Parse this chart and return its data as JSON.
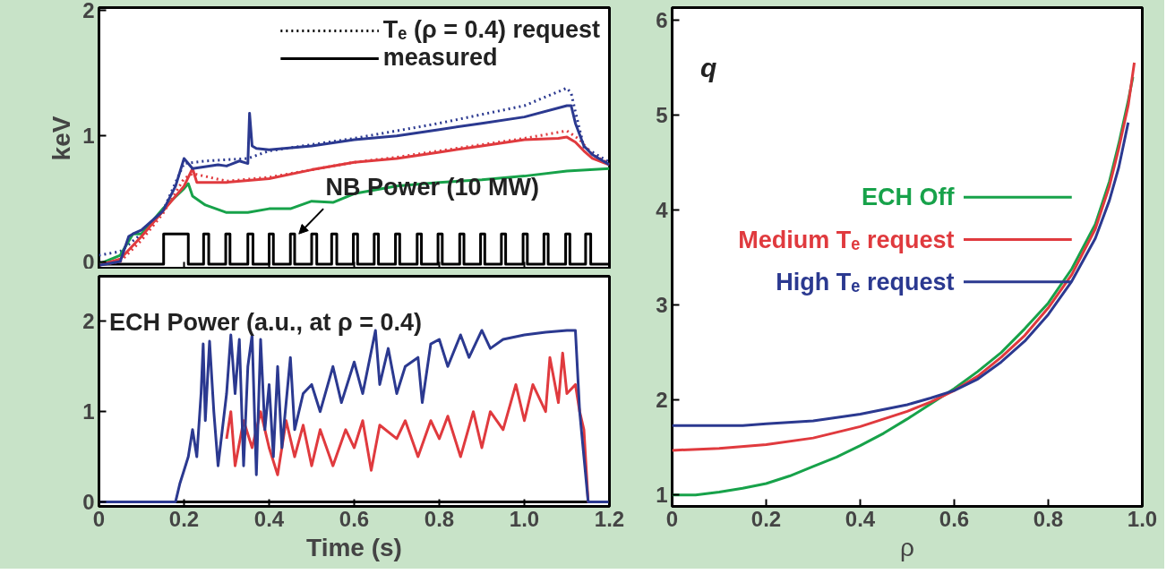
{
  "chart_data": [
    {
      "type": "line",
      "ylabel": "keV",
      "xlim": [
        0,
        1.2
      ],
      "ylim": [
        -0.06,
        2.02
      ],
      "xticks": [
        0,
        0.2,
        0.4,
        0.6,
        0.8,
        1.0,
        1.2
      ],
      "yticks": [
        0,
        1,
        2
      ],
      "tick_labels": "y",
      "legend": "top right",
      "annotations": [
        "Tₑ (ρ = 0.4) request",
        "measured",
        {
          "text": "NB Power (10 MW)",
          "x": 0.47,
          "y": 0.22
        }
      ],
      "series": [
        {
          "color": "#2b3990",
          "line_style": "dotted",
          "x": [
            0,
            0.05,
            0.1,
            0.15,
            0.2,
            0.25,
            0.35,
            0.4,
            0.5,
            0.6,
            0.7,
            0.8,
            0.9,
            1.0,
            1.1,
            1.11,
            1.12,
            1.14,
            1.17,
            1.2
          ],
          "values": [
            0.05,
            0.08,
            0.22,
            0.4,
            0.78,
            0.8,
            0.82,
            0.88,
            0.93,
            0.98,
            1.04,
            1.1,
            1.17,
            1.24,
            1.38,
            1.34,
            1.19,
            0.91,
            0.85,
            0.79
          ]
        },
        {
          "color": "#000000",
          "x": [
            0,
            0.152,
            0.152,
            0.21,
            0.21,
            0.246,
            0.246,
            0.258,
            0.258,
            0.298,
            0.298,
            0.308,
            0.308,
            0.35,
            0.35,
            0.362,
            0.362,
            0.4,
            0.4,
            0.41,
            0.41,
            0.45,
            0.45,
            0.46,
            0.46,
            0.5,
            0.5,
            0.512,
            0.512,
            0.547,
            0.547,
            0.559,
            0.559,
            0.598,
            0.598,
            0.608,
            0.608,
            0.647,
            0.647,
            0.657,
            0.657,
            0.697,
            0.697,
            0.707,
            0.707,
            0.748,
            0.748,
            0.758,
            0.758,
            0.797,
            0.797,
            0.807,
            0.807,
            0.848,
            0.848,
            0.858,
            0.858,
            0.897,
            0.897,
            0.907,
            0.907,
            0.946,
            0.946,
            0.956,
            0.956,
            0.997,
            0.997,
            1.007,
            1.007,
            1.046,
            1.046,
            1.056,
            1.056,
            1.097,
            1.097,
            1.107,
            1.107,
            1.144,
            1.144,
            1.156,
            1.156,
            1.2
          ],
          "values": [
            -0.02,
            -0.02,
            0.22,
            0.22,
            -0.02,
            -0.02,
            0.22,
            0.22,
            -0.02,
            -0.02,
            0.22,
            0.22,
            -0.02,
            -0.02,
            0.22,
            0.22,
            -0.02,
            -0.02,
            0.22,
            0.22,
            -0.02,
            -0.02,
            0.22,
            0.22,
            -0.02,
            -0.02,
            0.22,
            0.22,
            -0.02,
            -0.02,
            0.22,
            0.22,
            -0.02,
            -0.02,
            0.22,
            0.22,
            -0.02,
            -0.02,
            0.22,
            0.22,
            -0.02,
            -0.02,
            0.22,
            0.22,
            -0.02,
            -0.02,
            0.22,
            0.22,
            -0.02,
            -0.02,
            0.22,
            0.22,
            -0.02,
            -0.02,
            0.22,
            0.22,
            -0.02,
            -0.02,
            0.22,
            0.22,
            -0.02,
            -0.02,
            0.22,
            0.22,
            -0.02,
            -0.02,
            0.22,
            0.22,
            -0.02,
            -0.02,
            0.22,
            0.22,
            -0.02,
            -0.02,
            0.22,
            0.22,
            -0.02,
            -0.02,
            0.22,
            0.22,
            -0.02,
            -0.02
          ]
        },
        {
          "color": "#17a24a",
          "line_style": "solid",
          "x": [
            0,
            0.05,
            0.08,
            0.1,
            0.15,
            0.2,
            0.21,
            0.22,
            0.25,
            0.3,
            0.35,
            0.4,
            0.45,
            0.5,
            0.55,
            0.6,
            0.7,
            0.8,
            0.9,
            1.0,
            1.1,
            1.2
          ],
          "values": [
            -0.02,
            0.05,
            0.22,
            0.22,
            0.42,
            0.58,
            0.62,
            0.52,
            0.45,
            0.39,
            0.39,
            0.42,
            0.42,
            0.48,
            0.47,
            0.54,
            0.6,
            0.63,
            0.65,
            0.68,
            0.72,
            0.74
          ]
        },
        {
          "color": "#e03a3e",
          "line_style": "dotted",
          "x": [
            0,
            0.05,
            0.1,
            0.15,
            0.2,
            0.22,
            0.3,
            0.4,
            0.5,
            0.6,
            0.7,
            0.8,
            0.9,
            1.0,
            1.1,
            1.13,
            1.16,
            1.2
          ],
          "values": [
            -0.03,
            0.0,
            0.17,
            0.38,
            0.66,
            0.7,
            0.64,
            0.67,
            0.73,
            0.79,
            0.83,
            0.88,
            0.93,
            0.98,
            1.04,
            0.97,
            0.85,
            0.78
          ]
        },
        {
          "color": "#e03a3e",
          "line_style": "solid",
          "x": [
            0,
            0.05,
            0.1,
            0.15,
            0.2,
            0.22,
            0.23,
            0.3,
            0.4,
            0.5,
            0.6,
            0.7,
            0.8,
            0.9,
            1.0,
            1.08,
            1.1,
            1.12,
            1.14,
            1.16,
            1.2
          ],
          "values": [
            -0.03,
            0.02,
            0.2,
            0.4,
            0.6,
            0.74,
            0.63,
            0.63,
            0.66,
            0.73,
            0.79,
            0.82,
            0.87,
            0.92,
            0.97,
            0.98,
            0.99,
            0.95,
            0.88,
            0.82,
            0.77
          ]
        },
        {
          "color": "#2b3990",
          "line_style": "solid",
          "x": [
            0,
            0.05,
            0.07,
            0.08,
            0.1,
            0.15,
            0.18,
            0.2,
            0.22,
            0.28,
            0.3,
            0.33,
            0.35,
            0.354,
            0.36,
            0.37,
            0.4,
            0.5,
            0.6,
            0.7,
            0.8,
            0.9,
            1.0,
            1.1,
            1.11,
            1.12,
            1.14,
            1.16,
            1.2
          ],
          "values": [
            -0.03,
            0.0,
            0.2,
            0.22,
            0.25,
            0.4,
            0.6,
            0.82,
            0.74,
            0.77,
            0.76,
            0.8,
            0.78,
            1.18,
            0.92,
            0.9,
            0.89,
            0.92,
            0.97,
            1.0,
            1.05,
            1.1,
            1.15,
            1.24,
            1.24,
            1.1,
            0.92,
            0.85,
            0.77
          ]
        }
      ]
    },
    {
      "type": "line",
      "xlabel": "Time (s)",
      "xlim": [
        0,
        1.2
      ],
      "ylim": [
        -0.05,
        2.5
      ],
      "xticks": [
        0,
        0.2,
        0.4,
        0.6,
        0.8,
        {
          "value": 1.0,
          "label": "1.0"
        },
        1.2
      ],
      "yticks": [
        0,
        1,
        2
      ],
      "annotations": [
        "ECH Power (a.u., at ρ = 0.4)"
      ],
      "series": [
        {
          "color": "#000000",
          "x": [
            0.17,
            1.2
          ],
          "values": [
            0,
            0
          ]
        },
        {
          "color": "#e03a3e",
          "x": [
            0,
            0.18,
            0.2,
            0.3,
            0.31,
            0.32,
            0.34,
            0.36,
            0.38,
            0.4,
            0.42,
            0.44,
            0.46,
            0.48,
            0.5,
            0.52,
            0.55,
            0.58,
            0.6,
            0.62,
            0.64,
            0.66,
            0.7,
            0.72,
            0.75,
            0.78,
            0.8,
            0.82,
            0.85,
            0.88,
            0.9,
            0.92,
            0.95,
            0.98,
            1.0,
            1.02,
            1.05,
            1.06,
            1.08,
            1.09,
            1.1,
            1.12,
            1.13,
            1.14,
            1.15,
            1.2
          ],
          "values": [
            0,
            0,
            null,
            0.7,
            1.0,
            0.4,
            0.9,
            0.6,
            1.0,
            0.6,
            0.3,
            0.9,
            0.5,
            0.85,
            0.4,
            0.8,
            0.4,
            0.8,
            0.6,
            0.9,
            0.35,
            0.85,
            0.7,
            0.9,
            0.5,
            0.9,
            0.7,
            0.95,
            0.5,
            1.0,
            0.6,
            1.0,
            0.8,
            1.3,
            0.9,
            1.3,
            1.0,
            1.6,
            1.1,
            1.65,
            1.2,
            1.3,
            1.0,
            0.8,
            0,
            0
          ]
        },
        {
          "color": "#2b3990",
          "x": [
            0,
            0.18,
            0.19,
            0.2,
            0.21,
            0.22,
            0.23,
            0.24,
            0.245,
            0.25,
            0.26,
            0.27,
            0.28,
            0.3,
            0.31,
            0.32,
            0.33,
            0.34,
            0.35,
            0.36,
            0.37,
            0.38,
            0.39,
            0.4,
            0.41,
            0.42,
            0.43,
            0.45,
            0.46,
            0.48,
            0.5,
            0.52,
            0.55,
            0.57,
            0.6,
            0.62,
            0.65,
            0.66,
            0.68,
            0.7,
            0.72,
            0.75,
            0.76,
            0.78,
            0.8,
            0.82,
            0.85,
            0.87,
            0.9,
            0.92,
            0.95,
            1.0,
            1.05,
            1.1,
            1.12,
            1.13,
            1.14,
            1.15,
            1.2
          ],
          "values": [
            0,
            0,
            0.2,
            0.35,
            0.5,
            0.8,
            0.5,
            1.2,
            1.75,
            0.9,
            1.78,
            1.0,
            0.4,
            1.2,
            1.85,
            1.2,
            1.8,
            0.4,
            1.5,
            1.85,
            0.3,
            1.8,
            0.8,
            1.3,
            0.5,
            1.5,
            0.6,
            1.6,
            0.8,
            1.2,
            1.3,
            1.0,
            1.5,
            1.1,
            1.55,
            1.2,
            1.9,
            1.3,
            1.7,
            1.2,
            1.5,
            1.6,
            1.1,
            1.75,
            1.8,
            1.5,
            1.85,
            1.6,
            1.9,
            1.7,
            1.8,
            1.85,
            1.88,
            1.9,
            1.9,
            1.0,
            0.5,
            0,
            0
          ]
        }
      ]
    },
    {
      "type": "line",
      "xlabel": "ρ",
      "xlim": [
        0,
        1.0
      ],
      "ylim": [
        0.88,
        6.13
      ],
      "xticks": [
        0,
        0.2,
        0.4,
        0.6,
        0.8,
        {
          "value": 1.0,
          "label": "1.0"
        }
      ],
      "yticks": [
        1,
        2,
        3,
        4,
        5,
        6
      ],
      "legend": "right",
      "annotations": [
        "q"
      ],
      "series": [
        {
          "name": "ECH Off",
          "color": "#17a24a",
          "x": [
            0,
            0.05,
            0.1,
            0.15,
            0.2,
            0.25,
            0.3,
            0.35,
            0.4,
            0.45,
            0.5,
            0.55,
            0.6,
            0.65,
            0.7,
            0.75,
            0.8,
            0.85,
            0.9,
            0.93,
            0.95,
            0.97,
            0.98
          ],
          "values": [
            1.0,
            1.0,
            1.03,
            1.07,
            1.12,
            1.2,
            1.3,
            1.4,
            1.52,
            1.65,
            1.8,
            1.96,
            2.12,
            2.3,
            2.5,
            2.75,
            3.02,
            3.38,
            3.85,
            4.3,
            4.7,
            5.15,
            5.4
          ]
        },
        {
          "name": "Medium Tₑ request",
          "color": "#e03a3e",
          "x": [
            0,
            0.1,
            0.2,
            0.3,
            0.4,
            0.5,
            0.55,
            0.6,
            0.65,
            0.7,
            0.75,
            0.8,
            0.85,
            0.9,
            0.93,
            0.95,
            0.97,
            0.983
          ],
          "values": [
            1.47,
            1.49,
            1.53,
            1.6,
            1.72,
            1.88,
            1.98,
            2.1,
            2.25,
            2.45,
            2.68,
            2.97,
            3.32,
            3.8,
            4.25,
            4.65,
            5.1,
            5.55
          ]
        },
        {
          "name": "High Tₑ request",
          "color": "#2b3990",
          "x": [
            0,
            0.15,
            0.2,
            0.3,
            0.4,
            0.5,
            0.55,
            0.6,
            0.65,
            0.7,
            0.75,
            0.8,
            0.85,
            0.9,
            0.93,
            0.95,
            0.97
          ],
          "values": [
            1.73,
            1.73,
            1.75,
            1.78,
            1.85,
            1.95,
            2.02,
            2.1,
            2.22,
            2.4,
            2.62,
            2.9,
            3.25,
            3.7,
            4.1,
            4.45,
            4.92
          ]
        }
      ]
    }
  ]
}
